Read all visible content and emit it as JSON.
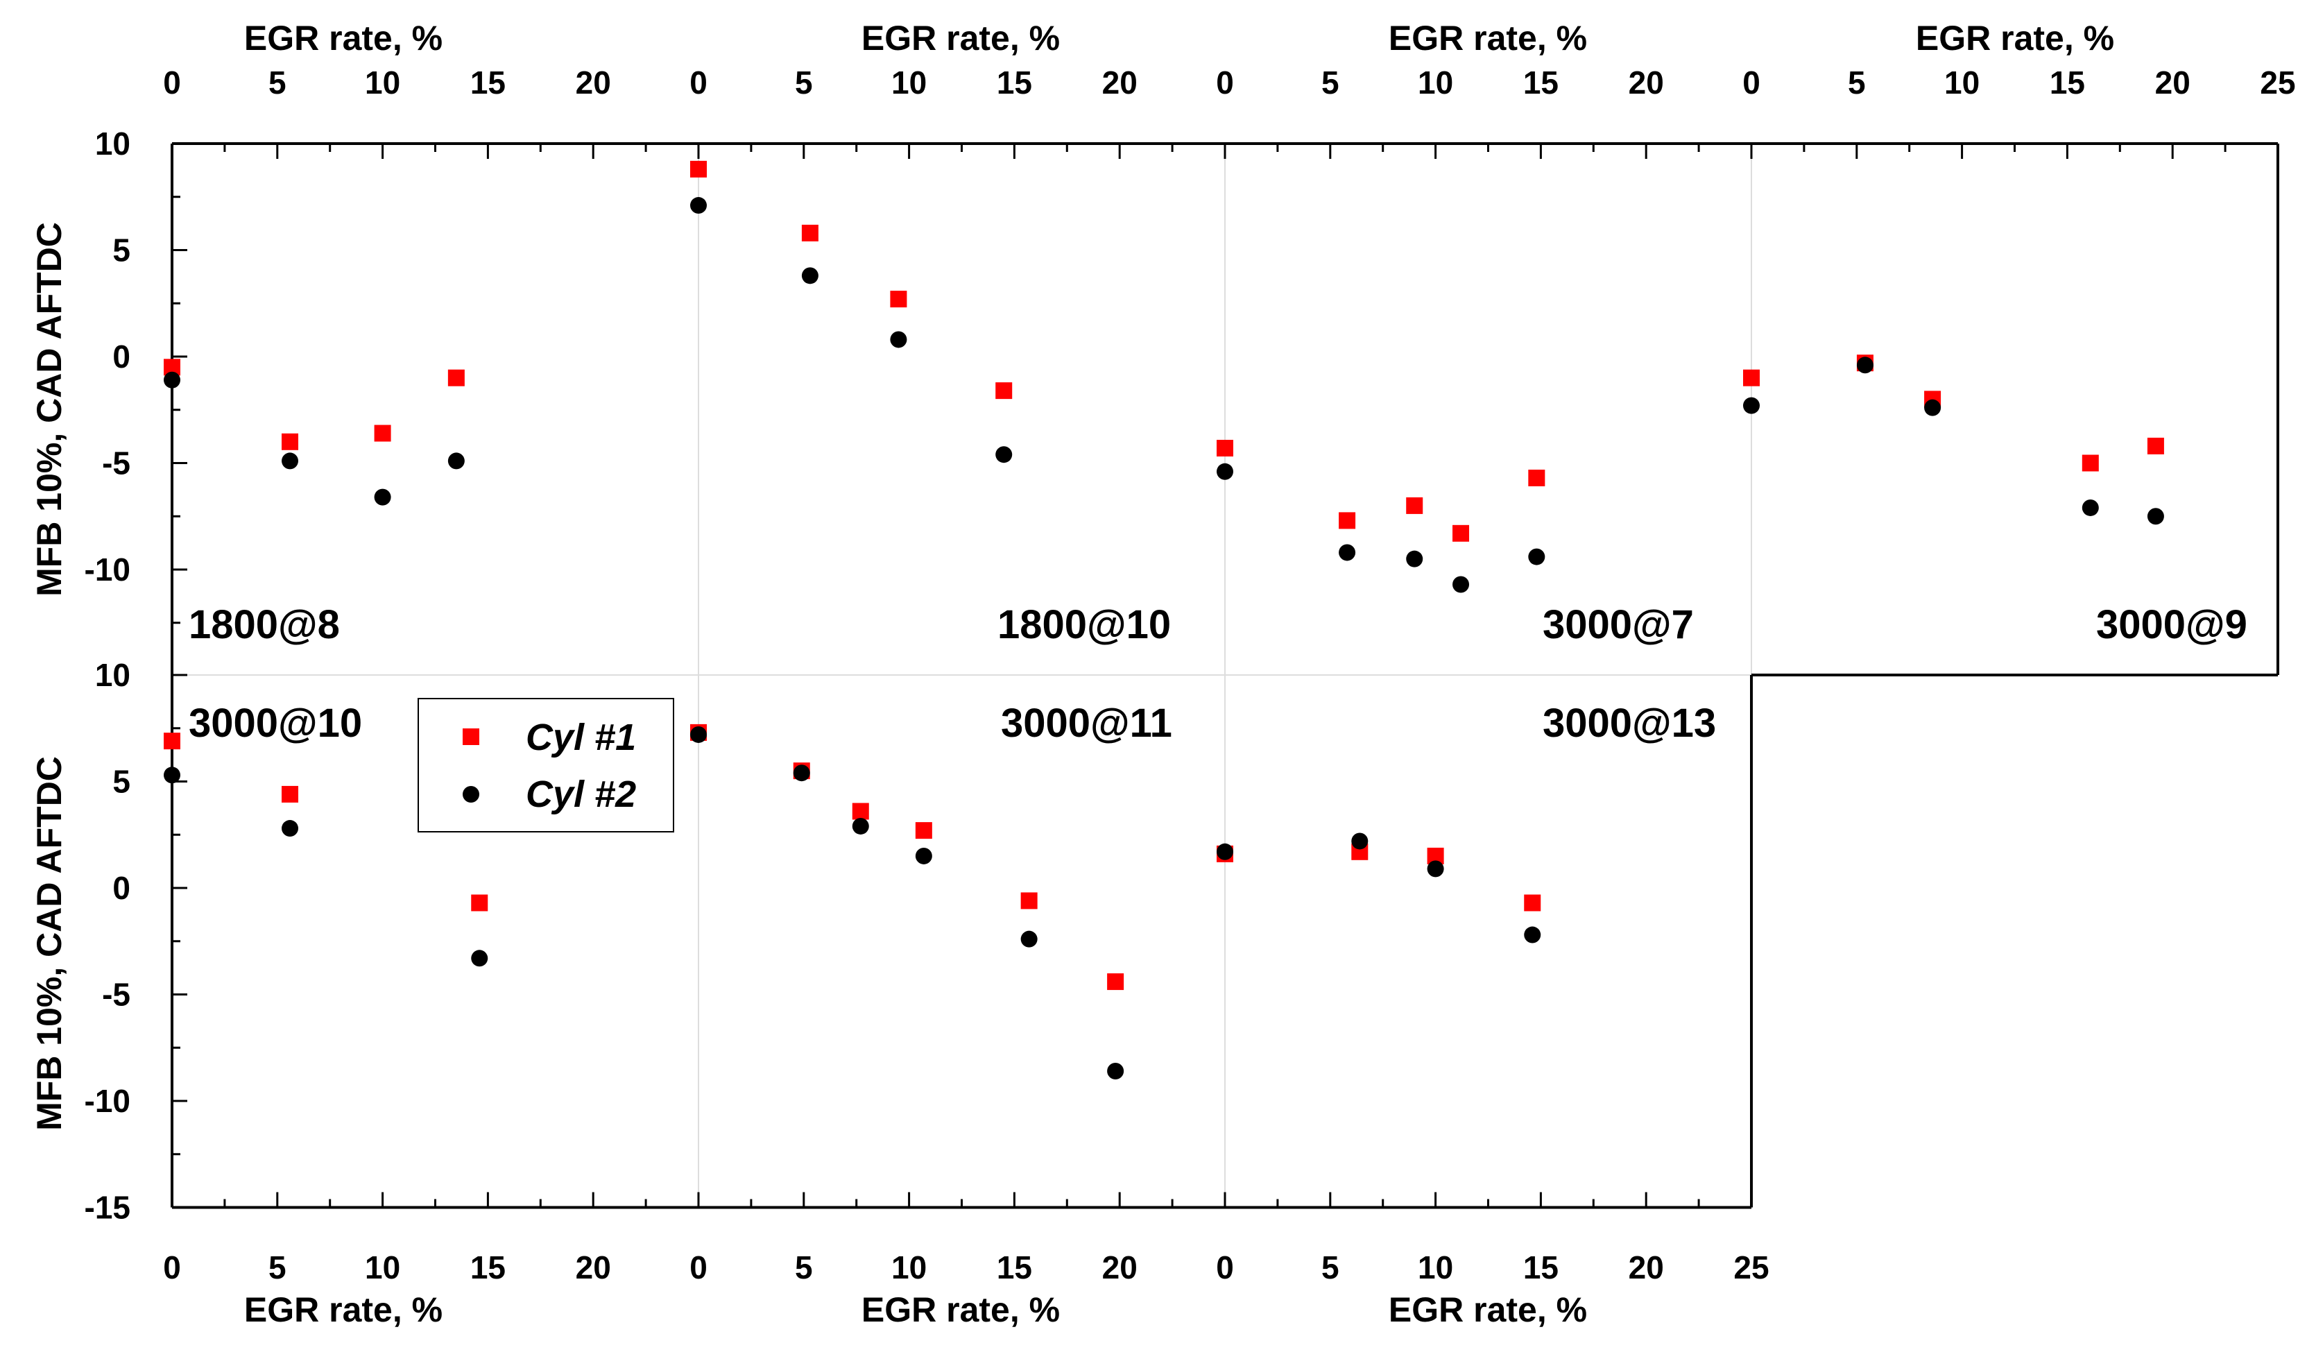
{
  "chart_data": {
    "type": "scatter",
    "x_axis_label": "EGR rate, %",
    "y_axis_label": "MFB 10%, CAD AFTDC",
    "x_ticks": [
      0,
      5,
      10,
      15,
      20
    ],
    "x_ticks_last_column": [
      0,
      5,
      10,
      15,
      20,
      25
    ],
    "xlim": [
      0,
      25
    ],
    "top_row_ylim": [
      -15,
      10
    ],
    "top_row_yticks": [
      -10,
      -5,
      0,
      5,
      10
    ],
    "bottom_row_ylim": [
      -15,
      10
    ],
    "bottom_row_yticks": [
      -15,
      -10,
      -5,
      0,
      5,
      10
    ],
    "legend": {
      "entries": [
        {
          "name": "Cyl #1",
          "marker": "square",
          "color": "#ff0000"
        },
        {
          "name": "Cyl #2",
          "marker": "circle",
          "color": "#000000"
        }
      ]
    },
    "panels": [
      {
        "label": "1800@8",
        "row": "top",
        "col": 0,
        "series": [
          {
            "name": "Cyl #1",
            "x": [
              0,
              5.6,
              10,
              13.5
            ],
            "y": [
              -0.5,
              -4.0,
              -3.6,
              -1.0
            ]
          },
          {
            "name": "Cyl #2",
            "x": [
              0,
              5.6,
              10,
              13.5
            ],
            "y": [
              -1.1,
              -4.9,
              -6.6,
              -4.9
            ]
          }
        ]
      },
      {
        "label": "1800@10",
        "row": "top",
        "col": 1,
        "series": [
          {
            "name": "Cyl #1",
            "x": [
              0,
              5.3,
              9.5,
              14.5
            ],
            "y": [
              8.8,
              5.8,
              2.7,
              -1.6
            ]
          },
          {
            "name": "Cyl #2",
            "x": [
              0,
              5.3,
              9.5,
              14.5
            ],
            "y": [
              7.1,
              3.8,
              0.8,
              -4.6
            ]
          }
        ]
      },
      {
        "label": "3000@7",
        "row": "top",
        "col": 2,
        "series": [
          {
            "name": "Cyl #1",
            "x": [
              0,
              5.8,
              9.0,
              11.2,
              14.8
            ],
            "y": [
              -4.3,
              -7.7,
              -7.0,
              -8.3,
              -5.7
            ]
          },
          {
            "name": "Cyl #2",
            "x": [
              0,
              5.8,
              9.0,
              11.2,
              14.8
            ],
            "y": [
              -5.4,
              -9.2,
              -9.5,
              -10.7,
              -9.4
            ]
          }
        ]
      },
      {
        "label": "3000@9",
        "row": "top",
        "col": 3,
        "series": [
          {
            "name": "Cyl #1",
            "x": [
              0,
              5.4,
              8.6,
              16.1,
              19.2
            ],
            "y": [
              -1.0,
              -0.3,
              -2.0,
              -5.0,
              -4.2
            ]
          },
          {
            "name": "Cyl #2",
            "x": [
              0,
              5.4,
              8.6,
              16.1,
              19.2
            ],
            "y": [
              -2.3,
              -0.4,
              -2.4,
              -7.1,
              -7.5
            ]
          }
        ]
      },
      {
        "label": "3000@10",
        "row": "bottom",
        "col": 0,
        "series": [
          {
            "name": "Cyl #1",
            "x": [
              0,
              5.6,
              14.6
            ],
            "y": [
              6.9,
              4.4,
              -0.7
            ]
          },
          {
            "name": "Cyl #2",
            "x": [
              0,
              5.6,
              14.6
            ],
            "y": [
              5.3,
              2.8,
              -3.3
            ]
          }
        ]
      },
      {
        "label": "3000@11",
        "row": "bottom",
        "col": 1,
        "series": [
          {
            "name": "Cyl #1",
            "x": [
              0,
              4.9,
              7.7,
              10.7,
              15.7,
              19.8
            ],
            "y": [
              7.3,
              5.5,
              3.6,
              2.7,
              -0.6,
              -4.4
            ]
          },
          {
            "name": "Cyl #2",
            "x": [
              0,
              4.9,
              7.7,
              10.7,
              15.7,
              19.8
            ],
            "y": [
              7.2,
              5.4,
              2.9,
              1.5,
              -2.4,
              -8.6
            ]
          }
        ]
      },
      {
        "label": "3000@13",
        "row": "bottom",
        "col": 2,
        "series": [
          {
            "name": "Cyl #1",
            "x": [
              0,
              6.4,
              10.0,
              14.6
            ],
            "y": [
              1.6,
              1.7,
              1.5,
              -0.7
            ]
          },
          {
            "name": "Cyl #2",
            "x": [
              0,
              6.4,
              10.0,
              14.6
            ],
            "y": [
              1.7,
              2.2,
              0.9,
              -2.2
            ]
          }
        ]
      }
    ]
  }
}
